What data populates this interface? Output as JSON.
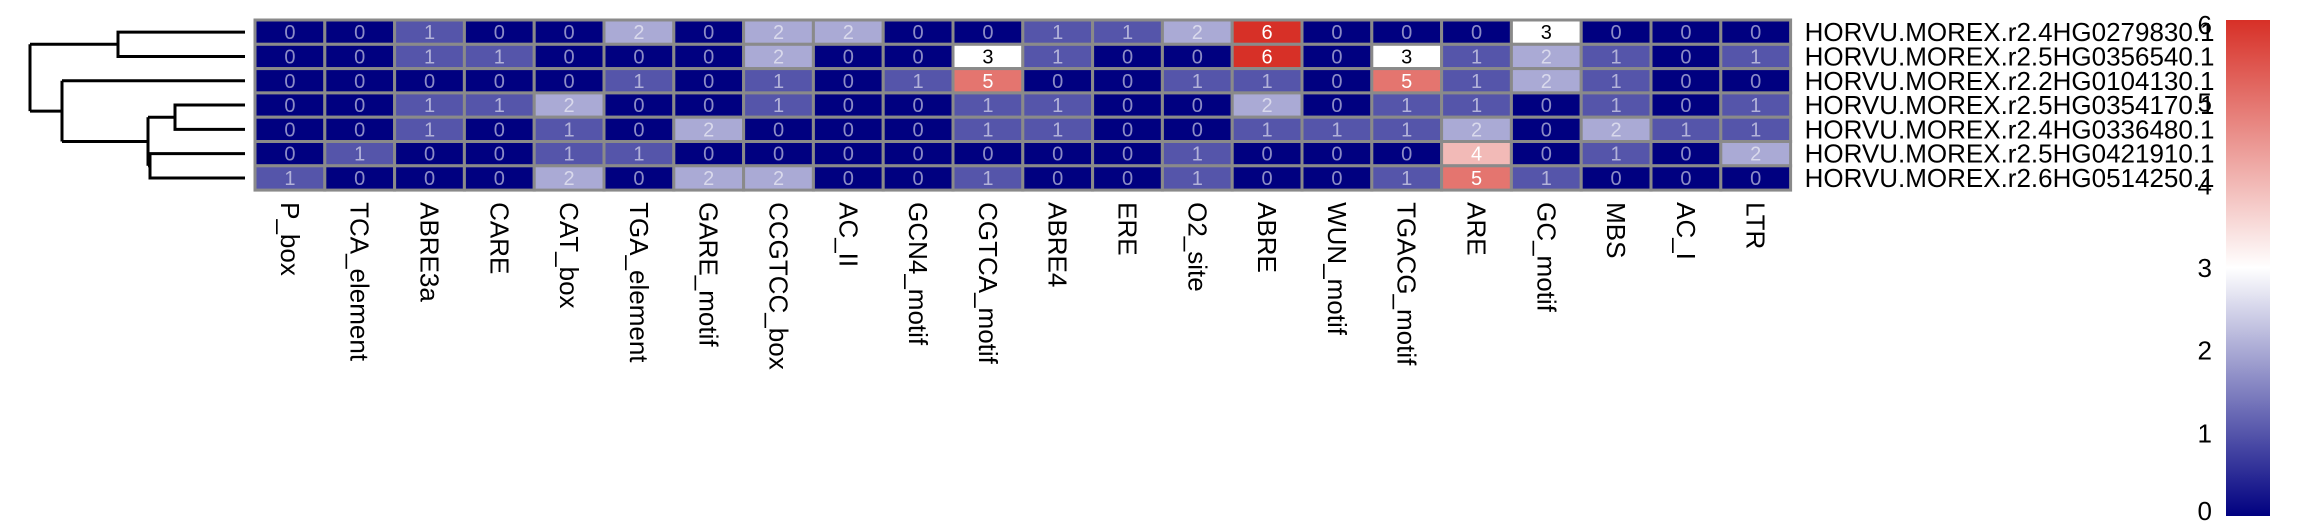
{
  "chart_data": {
    "type": "heatmap",
    "title": "",
    "rows": [
      "HORVU.MOREX.r2.4HG0279830.1",
      "HORVU.MOREX.r2.5HG0356540.1",
      "HORVU.MOREX.r2.2HG0104130.1",
      "HORVU.MOREX.r2.5HG0354170.1",
      "HORVU.MOREX.r2.4HG0336480.1",
      "HORVU.MOREX.r2.5HG0421910.1",
      "HORVU.MOREX.r2.6HG0514250.1"
    ],
    "columns": [
      "P_box",
      "TCA_element",
      "ABRE3a",
      "CARE",
      "CAT_box",
      "TGA_element",
      "GARE_motif",
      "CCGTCC_box",
      "AC_II",
      "GCN4_motif",
      "CGTCA_motif",
      "ABRE4",
      "ERE",
      "O2_site",
      "ABRE",
      "WUN_motif",
      "TGACG_motif",
      "ARE",
      "GC_motif",
      "MBS",
      "AC_I",
      "LTR"
    ],
    "values": [
      [
        0,
        0,
        1,
        0,
        0,
        2,
        0,
        2,
        2,
        0,
        0,
        1,
        1,
        2,
        6,
        0,
        0,
        0,
        3,
        0,
        0,
        0
      ],
      [
        0,
        0,
        1,
        1,
        0,
        0,
        0,
        2,
        0,
        0,
        3,
        1,
        0,
        0,
        6,
        0,
        3,
        1,
        2,
        1,
        0,
        1
      ],
      [
        0,
        0,
        0,
        0,
        0,
        1,
        0,
        1,
        0,
        1,
        5,
        0,
        0,
        1,
        1,
        0,
        5,
        1,
        2,
        1,
        0,
        0
      ],
      [
        0,
        0,
        1,
        1,
        2,
        0,
        0,
        1,
        0,
        0,
        1,
        1,
        0,
        0,
        2,
        0,
        1,
        1,
        0,
        1,
        0,
        1
      ],
      [
        0,
        0,
        1,
        0,
        1,
        0,
        2,
        0,
        0,
        0,
        1,
        1,
        0,
        0,
        1,
        1,
        1,
        2,
        0,
        2,
        1,
        1
      ],
      [
        0,
        1,
        0,
        0,
        1,
        1,
        0,
        0,
        0,
        0,
        0,
        0,
        0,
        1,
        0,
        0,
        0,
        4,
        0,
        1,
        0,
        2
      ],
      [
        1,
        0,
        0,
        0,
        2,
        0,
        2,
        2,
        0,
        0,
        1,
        0,
        0,
        1,
        0,
        0,
        1,
        5,
        1,
        0,
        0,
        0
      ]
    ],
    "color_scale": {
      "min": 0,
      "mid": 3,
      "max": 6,
      "low_color": "#000080",
      "mid_color": "#ffffff",
      "high_color": "#d73027",
      "ticks": [
        0,
        1,
        2,
        3,
        4,
        5,
        6
      ]
    },
    "dendrogram": "rows",
    "legend_placement": "right"
  }
}
